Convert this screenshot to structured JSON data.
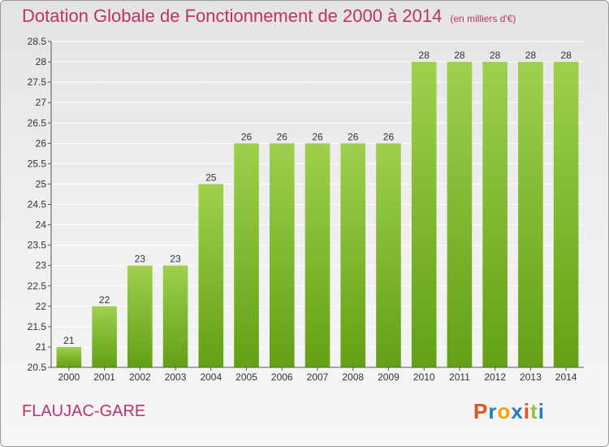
{
  "title": "Dotation Globale de Fonctionnement de 2000 à 2014",
  "subtitle": "(en milliers d'€)",
  "place": "FLAUJAC-GARE",
  "logo": {
    "text": "Proxiti",
    "colors": [
      "#e84f1c",
      "#2a7bc0",
      "#f2a400",
      "#2a7bc0",
      "#e84f1c",
      "#8cc63f",
      "#2a7bc0"
    ]
  },
  "colors": {
    "title": "#c0306a",
    "bar_light": "#9ed04c",
    "bar_dark": "#63a015",
    "grid": "#ffffff"
  },
  "chart_data": {
    "type": "bar",
    "categories": [
      "2000",
      "2001",
      "2002",
      "2003",
      "2004",
      "2005",
      "2006",
      "2007",
      "2008",
      "2009",
      "2010",
      "2011",
      "2012",
      "2013",
      "2014"
    ],
    "values": [
      21,
      22,
      23,
      23,
      25,
      26,
      26,
      26,
      26,
      26,
      28,
      28,
      28,
      28,
      28
    ],
    "value_labels": [
      "21",
      "22",
      "23",
      "23",
      "25",
      "26",
      "26",
      "26",
      "26",
      "26",
      "28",
      "28",
      "28",
      "28",
      "28"
    ],
    "ylim": [
      20.5,
      28.5
    ],
    "yticks": [
      20.5,
      21,
      21.5,
      22,
      22.5,
      23,
      23.5,
      24,
      24.5,
      25,
      25.5,
      26,
      26.5,
      27,
      27.5,
      28,
      28.5
    ],
    "ytick_labels": [
      "20.5",
      "21",
      "21.5",
      "22",
      "22.5",
      "23",
      "23.5",
      "24",
      "24.5",
      "25",
      "25.5",
      "26",
      "26.5",
      "27",
      "27.5",
      "28",
      "28.5"
    ],
    "grid": true,
    "title": "Dotation Globale de Fonctionnement de 2000 à 2014",
    "xlabel": "",
    "ylabel": ""
  }
}
